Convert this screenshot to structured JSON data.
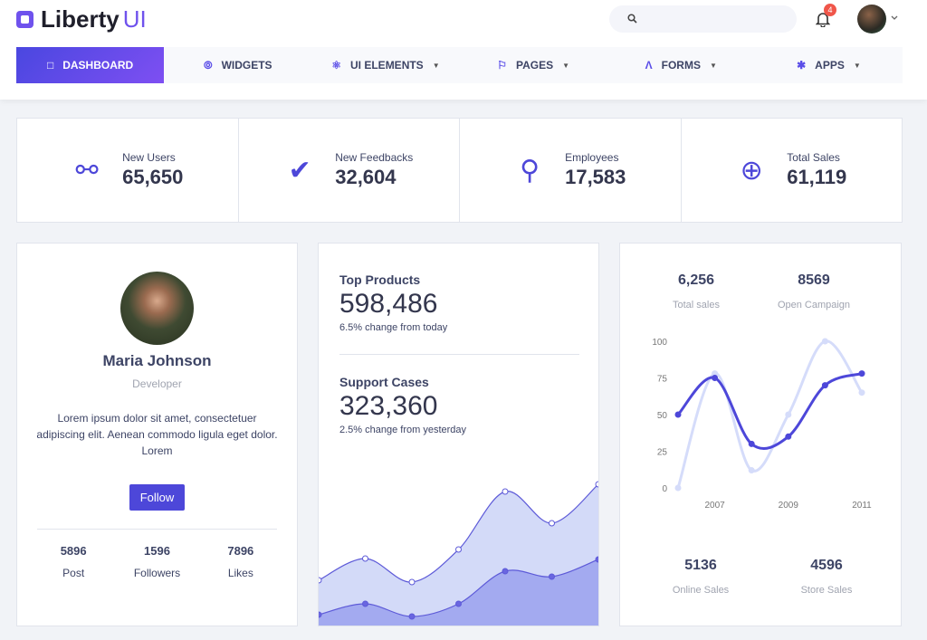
{
  "header": {
    "brand": "Liberty",
    "brand_accent": "UI",
    "notifications": "4",
    "search_placeholder": ""
  },
  "nav": [
    {
      "label": "DASHBOARD",
      "icon": "monitor-icon",
      "active": true
    },
    {
      "label": "WIDGETS",
      "icon": "compass-icon"
    },
    {
      "label": "UI ELEMENTS",
      "icon": "atom-icon",
      "dropdown": true
    },
    {
      "label": "PAGES",
      "icon": "flag-icon",
      "dropdown": true
    },
    {
      "label": "FORMS",
      "icon": "compass-drafting-icon",
      "dropdown": true
    },
    {
      "label": "APPS",
      "icon": "asterisk-icon",
      "dropdown": true
    }
  ],
  "stats": [
    {
      "label": "New Users",
      "value": "65,650",
      "icon": "users-icon"
    },
    {
      "label": "New Feedbacks",
      "value": "32,604",
      "icon": "check-circle-icon"
    },
    {
      "label": "Employees",
      "value": "17,583",
      "icon": "trophy-icon"
    },
    {
      "label": "Total Sales",
      "value": "61,119",
      "icon": "crosshair-icon"
    }
  ],
  "profile": {
    "name": "Maria Johnson",
    "role": "Developer",
    "bio": "Lorem ipsum dolor sit amet, consectetuer adipiscing elit. Aenean commodo ligula eget dolor. Lorem",
    "follow": "Follow",
    "stats": [
      {
        "value": "5896",
        "label": "Post"
      },
      {
        "value": "1596",
        "label": "Followers"
      },
      {
        "value": "7896",
        "label": "Likes"
      }
    ]
  },
  "products": {
    "title": "Top Products",
    "value": "598,486",
    "change": "6.5% change from today",
    "title2": "Support Cases",
    "value2": "323,360",
    "change2": "2.5% change from yesterday"
  },
  "summary": {
    "top": [
      {
        "value": "6,256",
        "label": "Total sales"
      },
      {
        "value": "8569",
        "label": "Open Campaign"
      }
    ],
    "bottom": [
      {
        "value": "5136",
        "label": "Online Sales"
      },
      {
        "value": "4596",
        "label": "Store Sales"
      }
    ]
  },
  "colors": {
    "accent": "#4d47d9",
    "light_series": "#d5dcfa",
    "area_upper": "#d3daf8",
    "area_lower": "#a3aaf0"
  },
  "chart_data": [
    {
      "type": "area",
      "series": [
        {
          "values": [
            52,
            76,
            50,
            86,
            150,
            115,
            158
          ]
        },
        {
          "values": [
            14,
            26,
            12,
            26,
            62,
            56,
            75
          ]
        }
      ]
    },
    {
      "type": "line",
      "x": [
        2006,
        2007,
        2008,
        2009,
        2010,
        2011
      ],
      "xticks": [
        "2007",
        "2009",
        "2011"
      ],
      "yticks": [
        "0",
        "25",
        "50",
        "75",
        "100"
      ],
      "ylim": [
        0,
        100
      ],
      "series": [
        {
          "values": [
            50,
            75,
            30,
            35,
            70,
            78
          ],
          "color": "#4d47d9"
        },
        {
          "values": [
            0,
            78,
            12,
            50,
            100,
            65
          ],
          "color": "#d5dcfa"
        }
      ]
    }
  ]
}
